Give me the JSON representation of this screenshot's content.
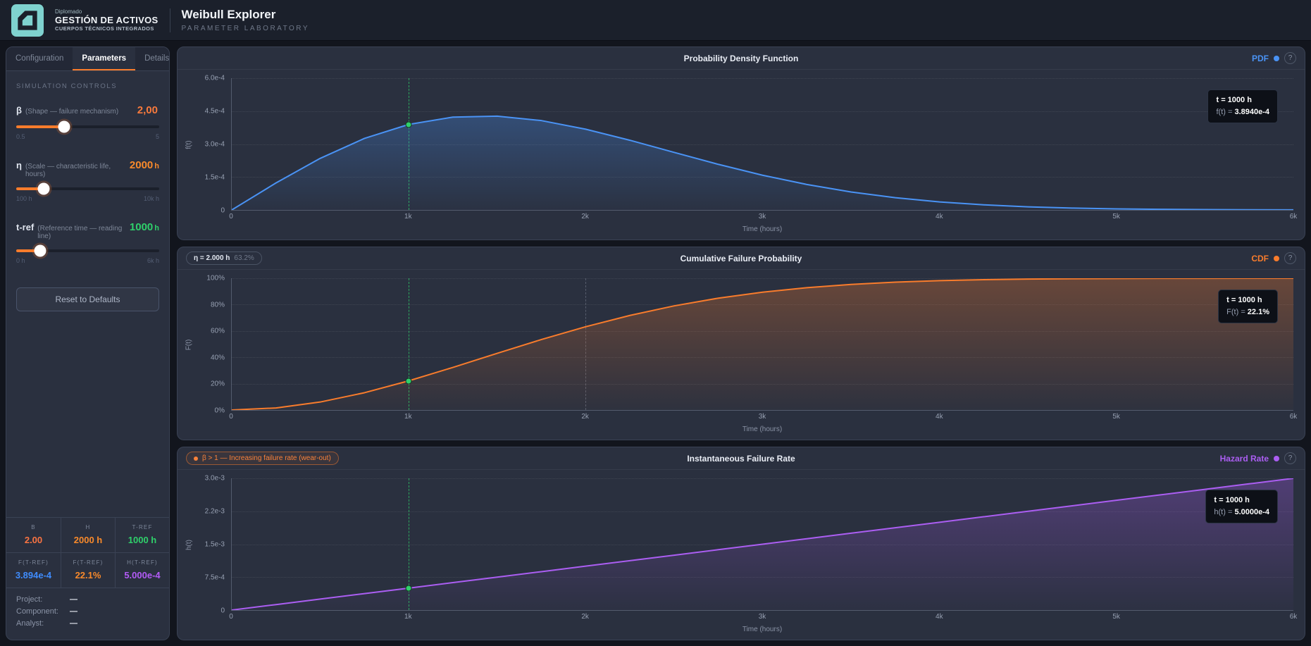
{
  "header": {
    "logo_line1": "Diplomado",
    "logo_line2": "GESTIÓN DE ACTIVOS",
    "logo_line3": "CUERPOS TÉCNICOS INTEGRADOS",
    "title": "Weibull Explorer",
    "subtitle": "PARAMETER LABORATORY",
    "logo_color": "#7fd2cf"
  },
  "sidebar": {
    "tabs": [
      {
        "label": "Configuration",
        "active": false
      },
      {
        "label": "Parameters",
        "active": true
      },
      {
        "label": "Details",
        "active": false
      }
    ],
    "section_title": "SIMULATION CONTROLS",
    "sliders": [
      {
        "symbol": "β",
        "description": "(Shape — failure mechanism)",
        "value": "2,00",
        "unit": "",
        "color": "#f97a3c",
        "min_label": "0.5",
        "max_label": "5",
        "fill_pct": 33.3
      },
      {
        "symbol": "η",
        "description": "(Scale — characteristic life, hours)",
        "value": "2000",
        "unit": "h",
        "color": "#f98a2b",
        "min_label": "100 h",
        "max_label": "10k h",
        "fill_pct": 19.2
      },
      {
        "symbol": "t-ref",
        "description": "(Reference time — reading line)",
        "value": "1000",
        "unit": "h",
        "color": "#2fd06b",
        "min_label": "0 h",
        "max_label": "6k h",
        "fill_pct": 16.7
      }
    ],
    "reset_button": "Reset to Defaults",
    "stats": [
      {
        "label": "Β",
        "value": "2.00",
        "color": "#fb7442"
      },
      {
        "label": "Η",
        "value": "2000 h",
        "color": "#f98a2b"
      },
      {
        "label": "T-REF",
        "value": "1000 h",
        "color": "#2fd06b"
      },
      {
        "label": "F(T-REF)",
        "value": "3.894e-4",
        "color": "#3f8cfd"
      },
      {
        "label": "F(T-REF)",
        "value": "22.1%",
        "color": "#f98a2b"
      },
      {
        "label": "H(T-REF)",
        "value": "5.000e-4",
        "color": "#b45bf7"
      }
    ],
    "meta": [
      {
        "label": "Project:",
        "value": "—"
      },
      {
        "label": "Component:",
        "value": "—"
      },
      {
        "label": "Analyst:",
        "value": "—"
      }
    ]
  },
  "chart_data": [
    {
      "type": "line",
      "title": "Probability Density Function",
      "type_label": "PDF",
      "accent": "#4a93f5",
      "badge": null,
      "tooltip": {
        "line1": "t = 1000 h",
        "label": "f(t)",
        "value": "3.8940e-4"
      },
      "xlabel": "Time (hours)",
      "ylabel": "f(t)",
      "xlim": [
        0,
        6000
      ],
      "ylim": [
        0,
        0.0006
      ],
      "x_ticks": [
        "0",
        "1k",
        "2k",
        "3k",
        "4k",
        "5k",
        "6k"
      ],
      "y_ticks": [
        {
          "v": 0,
          "label": "0"
        },
        {
          "v": 0.00015,
          "label": "1.5e-4"
        },
        {
          "v": 0.0003,
          "label": "3.0e-4"
        },
        {
          "v": 0.00045,
          "label": "4.5e-4"
        },
        {
          "v": 0.0006,
          "label": "6.0e-4"
        }
      ],
      "ref_x": 1000,
      "eta_line_x": null,
      "marker": {
        "x": 1000,
        "y": 0.0003894
      },
      "x": [
        0,
        250,
        500,
        750,
        1000,
        1250,
        1500,
        1750,
        2000,
        2250,
        2500,
        2750,
        3000,
        3250,
        3500,
        3750,
        4000,
        4250,
        4500,
        4750,
        5000,
        5250,
        5500,
        5750,
        6000
      ],
      "y": [
        0,
        0.00012306,
        0.00023485,
        0.00032581,
        0.0003894,
        0.00042289,
        0.00042734,
        0.00040691,
        0.00036788,
        0.00031731,
        0.00026202,
        0.00020764,
        0.0001581,
        0.00011596,
        8.185e-05,
        5.574e-05,
        3.663e-05,
        2.325e-05,
        1.424e-05,
        8.44e-06,
        4.83e-06,
        2.67e-06,
        1.43e-06,
        7.4e-07,
        3.7e-07
      ]
    },
    {
      "type": "line",
      "title": "Cumulative Failure Probability",
      "type_label": "CDF",
      "accent": "#f97c2c",
      "badge": {
        "style": "neutral",
        "strong": "η = 2.000 h",
        "dim": "63.2%"
      },
      "tooltip": {
        "line1": "t = 1000 h",
        "label": "F(t)",
        "value": "22.1%"
      },
      "xlabel": "Time (hours)",
      "ylabel": "F(t)",
      "xlim": [
        0,
        6000
      ],
      "ylim": [
        0,
        1
      ],
      "x_ticks": [
        "0",
        "1k",
        "2k",
        "3k",
        "4k",
        "5k",
        "6k"
      ],
      "y_ticks": [
        {
          "v": 0,
          "label": "0%"
        },
        {
          "v": 0.2,
          "label": "20%"
        },
        {
          "v": 0.4,
          "label": "40%"
        },
        {
          "v": 0.6,
          "label": "60%"
        },
        {
          "v": 0.8,
          "label": "80%"
        },
        {
          "v": 1,
          "label": "100%"
        }
      ],
      "ref_x": 1000,
      "eta_line_x": 2000,
      "marker": {
        "x": 1000,
        "y": 0.2212
      },
      "x": [
        0,
        250,
        500,
        750,
        1000,
        1250,
        1500,
        1750,
        2000,
        2250,
        2500,
        2750,
        3000,
        3250,
        3500,
        3750,
        4000,
        4250,
        4500,
        4750,
        5000,
        5250,
        5500,
        5750,
        6000
      ],
      "y": [
        0,
        0.0155,
        0.0606,
        0.1312,
        0.2212,
        0.3234,
        0.4302,
        0.535,
        0.6321,
        0.7179,
        0.7904,
        0.849,
        0.8946,
        0.9286,
        0.9532,
        0.9703,
        0.9817,
        0.9891,
        0.9937,
        0.9964,
        0.9981,
        0.999,
        0.9995,
        0.9997,
        0.9999
      ]
    },
    {
      "type": "line",
      "title": "Instantaneous Failure Rate",
      "type_label": "Hazard Rate",
      "accent": "#ab5ef2",
      "badge": {
        "style": "warning",
        "dot": true,
        "text": "β > 1 — Increasing failure rate (wear-out)"
      },
      "tooltip": {
        "line1": "t = 1000 h",
        "label": "h(t)",
        "value": "5.0000e-4"
      },
      "xlabel": "Time (hours)",
      "ylabel": "h(t)",
      "xlim": [
        0,
        6000
      ],
      "ylim": [
        0,
        0.003
      ],
      "x_ticks": [
        "0",
        "1k",
        "2k",
        "3k",
        "4k",
        "5k",
        "6k"
      ],
      "y_ticks": [
        {
          "v": 0,
          "label": "0"
        },
        {
          "v": 0.00075,
          "label": "7.5e-4"
        },
        {
          "v": 0.0015,
          "label": "1.5e-3"
        },
        {
          "v": 0.00225,
          "label": "2.2e-3"
        },
        {
          "v": 0.003,
          "label": "3.0e-3"
        }
      ],
      "ref_x": 1000,
      "eta_line_x": null,
      "marker": {
        "x": 1000,
        "y": 0.0005
      },
      "x": [
        0,
        250,
        500,
        750,
        1000,
        1250,
        1500,
        1750,
        2000,
        2250,
        2500,
        2750,
        3000,
        3250,
        3500,
        3750,
        4000,
        4250,
        4500,
        4750,
        5000,
        5250,
        5500,
        5750,
        6000
      ],
      "y": [
        0,
        0.000125,
        0.00025,
        0.000375,
        0.0005,
        0.000625,
        0.00075,
        0.000875,
        0.001,
        0.001125,
        0.00125,
        0.001375,
        0.0015,
        0.001625,
        0.00175,
        0.001875,
        0.002,
        0.002125,
        0.00225,
        0.002375,
        0.0025,
        0.002625,
        0.00275,
        0.002875,
        0.003
      ]
    }
  ]
}
